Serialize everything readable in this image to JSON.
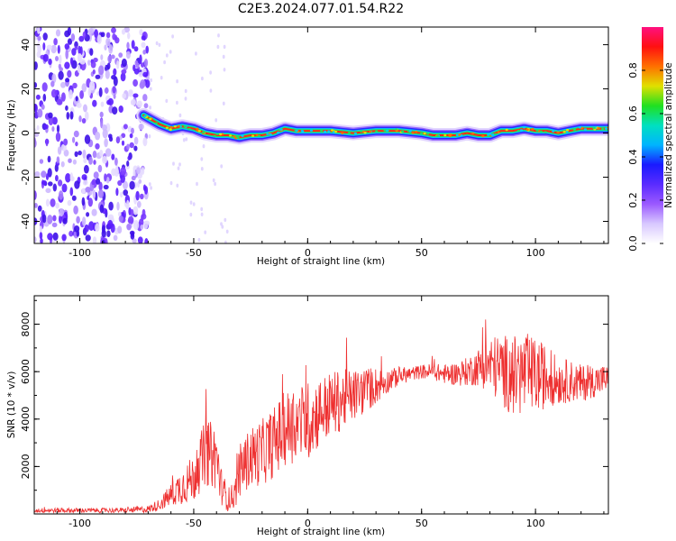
{
  "title": "C2E3.2024.077.01.54.R22",
  "chart_data": [
    {
      "type": "heatmap",
      "title": "C2E3.2024.077.01.54.R22",
      "xlabel": "Height of straight line (km)",
      "ylabel": "Frequency (Hz)",
      "xlim": [
        -120,
        132
      ],
      "ylim": [
        -50,
        48
      ],
      "xticks": [
        -100,
        -50,
        0,
        50,
        100
      ],
      "yticks": [
        -40,
        -20,
        0,
        20,
        40
      ],
      "colorbar": {
        "label": "Normalized spectral amplitude",
        "range": [
          0,
          1
        ],
        "ticks": [
          0.0,
          0.2,
          0.4,
          0.6,
          0.8
        ],
        "colormap": [
          "#ffffff",
          "#d8c8ff",
          "#9b59ff",
          "#5a2cff",
          "#1a1aff",
          "#00b4ff",
          "#00e0c0",
          "#20e020",
          "#e0e000",
          "#ff7000",
          "#ff1010",
          "#ff1080"
        ]
      },
      "noise_region_x": [
        -120,
        -70
      ],
      "ridge": {
        "x": [
          -72,
          -65,
          -60,
          -55,
          -50,
          -45,
          -40,
          -35,
          -30,
          -25,
          -20,
          -15,
          -10,
          -5,
          0,
          10,
          20,
          30,
          40,
          50,
          55,
          60,
          65,
          70,
          75,
          80,
          85,
          90,
          95,
          100,
          105,
          110,
          115,
          120,
          125,
          132
        ],
        "freq": [
          8,
          4,
          2,
          3,
          2,
          0,
          -1,
          -1,
          -2,
          -1,
          -1,
          0,
          2,
          1,
          1,
          1,
          0,
          1,
          1,
          0,
          -1,
          -1,
          -1,
          0,
          -1,
          -1,
          1,
          1,
          2,
          1,
          1,
          0,
          1,
          2,
          2,
          2
        ]
      }
    },
    {
      "type": "line",
      "xlabel": "Height of straight line (km)",
      "ylabel": "SNR (10 * v/v)",
      "xlim": [
        -120,
        132
      ],
      "ylim": [
        0,
        9200
      ],
      "xticks": [
        -100,
        -50,
        0,
        50,
        100
      ],
      "yticks": [
        2000,
        4000,
        6000,
        8000
      ],
      "color": "#ee3030",
      "series": [
        {
          "x": [
            -120,
            -100,
            -80,
            -70,
            -65,
            -60,
            -55,
            -50,
            -45,
            -40,
            -38,
            -35,
            -32,
            -30,
            -25,
            -20,
            -15,
            -10,
            -5,
            0,
            5,
            10,
            15,
            20,
            25,
            30,
            35,
            40,
            45,
            50,
            55,
            60,
            65,
            70,
            75,
            80,
            85,
            90,
            95,
            100,
            105,
            110,
            115,
            120,
            125,
            132
          ],
          "values": [
            150,
            150,
            150,
            200,
            400,
            800,
            1200,
            1500,
            2600,
            2400,
            1200,
            600,
            800,
            1800,
            2400,
            2600,
            3000,
            3600,
            3800,
            3900,
            4300,
            4600,
            4800,
            5000,
            5200,
            5400,
            5600,
            5800,
            5900,
            6000,
            6000,
            5900,
            5900,
            6000,
            6200,
            6300,
            6100,
            5800,
            5900,
            5800,
            5800,
            5600,
            5600,
            5500,
            5600,
            5700
          ],
          "spread": [
            100,
            100,
            100,
            150,
            250,
            500,
            800,
            1000,
            1400,
            1400,
            800,
            500,
            600,
            1100,
            1300,
            1400,
            1500,
            1600,
            1600,
            1700,
            1500,
            1400,
            1300,
            1100,
            1000,
            800,
            500,
            400,
            300,
            300,
            350,
            400,
            500,
            600,
            800,
            1200,
            1500,
            1700,
            1800,
            1600,
            1300,
            1000,
            900,
            800,
            700,
            600
          ]
        }
      ]
    }
  ]
}
